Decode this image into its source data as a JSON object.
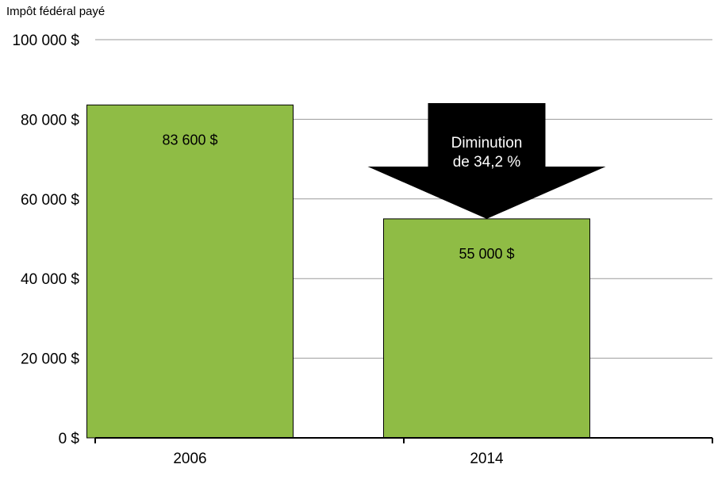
{
  "chart_data": {
    "type": "bar",
    "ylabel": "Impôt fédéral payé",
    "categories": [
      "2006",
      "2014"
    ],
    "values": [
      83600,
      55000
    ],
    "data_labels": [
      "83 600 $",
      "55 000 $"
    ],
    "ylim": [
      0,
      100000
    ],
    "yticks": [
      0,
      20000,
      40000,
      60000,
      80000,
      100000
    ],
    "ytick_labels": [
      "0 $",
      "20 000 $",
      "40 000 $",
      "60 000 $",
      "80 000 $",
      "100 000 $"
    ],
    "grid": true,
    "bar_color": "#8fbc45",
    "annotation": {
      "line1": "Diminution",
      "line2": "de 34,2 %",
      "color": "#000000",
      "text_color": "#ffffff"
    }
  }
}
